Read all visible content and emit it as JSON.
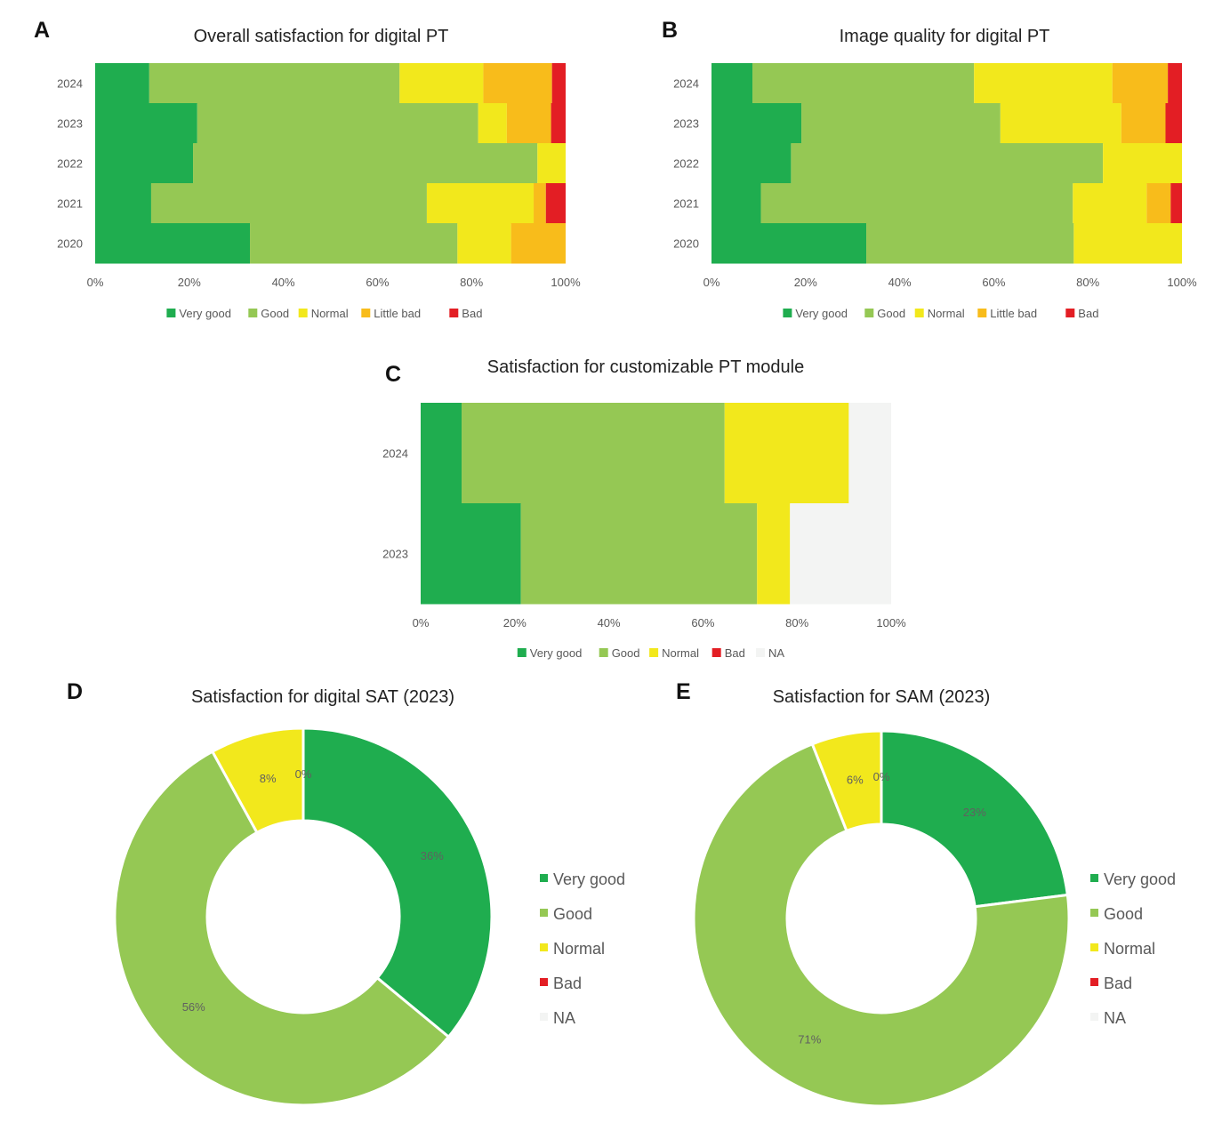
{
  "colors": {
    "Very good": "#1fad4f",
    "Good": "#95c854",
    "Normal": "#f2e81c",
    "Little bad": "#f8bc1b",
    "Bad": "#e31e24",
    "NA": "#f3f4f3"
  },
  "chart_data": [
    {
      "id": "A",
      "panel_label": "A",
      "type": "bar",
      "orientation": "horizontal-stacked-100",
      "title": "Overall satisfaction for digital PT",
      "categories": [
        "2024",
        "2023",
        "2022",
        "2021",
        "2020"
      ],
      "series": [
        {
          "name": "Very good",
          "values": [
            11.5,
            21.7,
            20.8,
            11.9,
            32.9
          ]
        },
        {
          "name": "Good",
          "values": [
            53.2,
            59.7,
            73.2,
            58.6,
            44.1
          ]
        },
        {
          "name": "Normal",
          "values": [
            17.8,
            6.1,
            6.0,
            22.7,
            11.4
          ]
        },
        {
          "name": "Little bad",
          "values": [
            14.6,
            9.4,
            0,
            2.6,
            11.6
          ]
        },
        {
          "name": "Bad",
          "values": [
            2.9,
            3.1,
            0,
            4.2,
            0
          ]
        }
      ],
      "xticks": [
        "0%",
        "20%",
        "40%",
        "60%",
        "80%",
        "100%"
      ],
      "legend": [
        "Very good",
        "Good",
        "Normal",
        "Little bad",
        "Bad"
      ]
    },
    {
      "id": "B",
      "panel_label": "B",
      "type": "bar",
      "orientation": "horizontal-stacked-100",
      "title": "Image quality for digital PT",
      "categories": [
        "2024",
        "2023",
        "2022",
        "2021",
        "2020"
      ],
      "series": [
        {
          "name": "Very good",
          "values": [
            8.7,
            19.1,
            16.9,
            10.5,
            32.9
          ]
        },
        {
          "name": "Good",
          "values": [
            47.1,
            42.3,
            66.3,
            66.3,
            44.1
          ]
        },
        {
          "name": "Normal",
          "values": [
            29.4,
            25.7,
            16.8,
            15.7,
            23.0
          ]
        },
        {
          "name": "Little bad",
          "values": [
            11.8,
            9.4,
            0,
            5.1,
            0
          ]
        },
        {
          "name": "Bad",
          "values": [
            3.0,
            3.5,
            0,
            2.4,
            0
          ]
        }
      ],
      "xticks": [
        "0%",
        "20%",
        "40%",
        "60%",
        "80%",
        "100%"
      ],
      "legend": [
        "Very good",
        "Good",
        "Normal",
        "Little bad",
        "Bad"
      ]
    },
    {
      "id": "C",
      "panel_label": "C",
      "type": "bar",
      "orientation": "horizontal-stacked-100",
      "title": "Satisfaction for customizable PT module",
      "categories": [
        "2024",
        "2023"
      ],
      "series": [
        {
          "name": "Very good",
          "values": [
            8.7,
            21.3
          ]
        },
        {
          "name": "Good",
          "values": [
            55.9,
            50.2
          ]
        },
        {
          "name": "Normal",
          "values": [
            26.4,
            7.0
          ]
        },
        {
          "name": "Bad",
          "values": [
            0,
            0
          ]
        },
        {
          "name": "NA",
          "values": [
            9.0,
            21.5
          ]
        }
      ],
      "xticks": [
        "0%",
        "20%",
        "40%",
        "60%",
        "80%",
        "100%"
      ],
      "legend": [
        "Very good",
        "Good",
        "Normal",
        "Bad",
        "NA"
      ]
    },
    {
      "id": "D",
      "panel_label": "D",
      "type": "pie",
      "donut": true,
      "title": "Satisfaction for digital SAT (2023)",
      "labels": [
        "Very good",
        "Good",
        "Normal",
        "Bad",
        "NA"
      ],
      "values": [
        36,
        56,
        8,
        0,
        0
      ],
      "data_labels": [
        "36%",
        "56%",
        "8%",
        "0%",
        ""
      ],
      "legend": [
        "Very good",
        "Good",
        "Normal",
        "Bad",
        "NA"
      ]
    },
    {
      "id": "E",
      "panel_label": "E",
      "type": "pie",
      "donut": true,
      "title": "Satisfaction for SAM (2023)",
      "labels": [
        "Very good",
        "Good",
        "Normal",
        "Bad",
        "NA"
      ],
      "values": [
        23,
        71,
        6,
        0,
        0
      ],
      "data_labels": [
        "23%",
        "71%",
        "6%",
        "0%",
        ""
      ],
      "legend": [
        "Very good",
        "Good",
        "Normal",
        "Bad",
        "NA"
      ]
    }
  ]
}
